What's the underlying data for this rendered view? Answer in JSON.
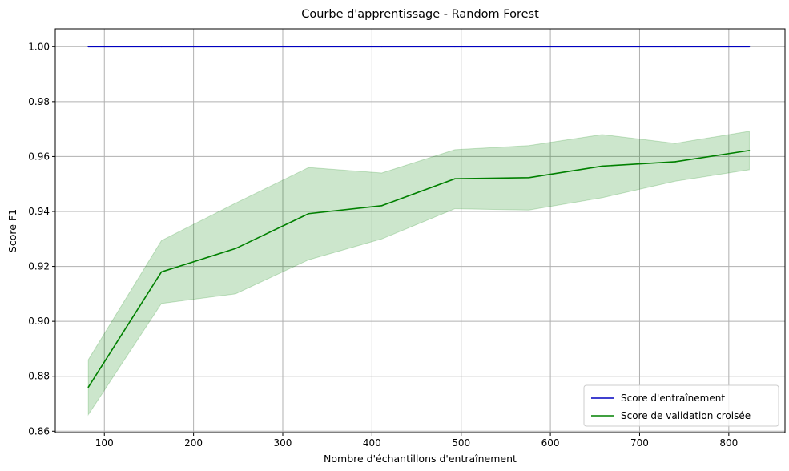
{
  "chart_data": {
    "type": "line",
    "title": "Courbe d'apprentissage - Random Forest",
    "xlabel": "Nombre d'échantillons d'entraînement",
    "ylabel": "Score F1",
    "xlim": [
      45,
      863
    ],
    "ylim": [
      0.8595,
      1.0065
    ],
    "xticks": [
      100,
      200,
      300,
      400,
      500,
      600,
      700,
      800
    ],
    "yticks": [
      0.86,
      0.88,
      0.9,
      0.92,
      0.94,
      0.96,
      0.98,
      1.0
    ],
    "xtick_labels": [
      "100",
      "200",
      "300",
      "400",
      "500",
      "600",
      "700",
      "800"
    ],
    "ytick_labels": [
      "0.86",
      "0.88",
      "0.90",
      "0.92",
      "0.94",
      "0.96",
      "0.98",
      "1.00"
    ],
    "grid": true,
    "legend_position": "lower-right",
    "x": [
      82,
      164,
      247,
      329,
      411,
      493,
      576,
      658,
      740,
      823
    ],
    "series": [
      {
        "name": "Score d'entraînement",
        "color": "#0000bf",
        "values": [
          1.0,
          1.0,
          1.0,
          1.0,
          1.0,
          1.0,
          1.0,
          1.0,
          1.0,
          1.0
        ]
      },
      {
        "name": "Score de validation croisée",
        "color": "#008000",
        "band_color": "#008000",
        "values": [
          0.876,
          0.918,
          0.9265,
          0.9392,
          0.9421,
          0.9519,
          0.9523,
          0.9565,
          0.9581,
          0.9622
        ],
        "band_upper": [
          0.886,
          0.9294,
          0.943,
          0.956,
          0.954,
          0.9625,
          0.964,
          0.968,
          0.9648,
          0.9692
        ],
        "band_lower": [
          0.866,
          0.9065,
          0.91,
          0.9224,
          0.93,
          0.941,
          0.9405,
          0.945,
          0.951,
          0.9552
        ]
      }
    ]
  }
}
